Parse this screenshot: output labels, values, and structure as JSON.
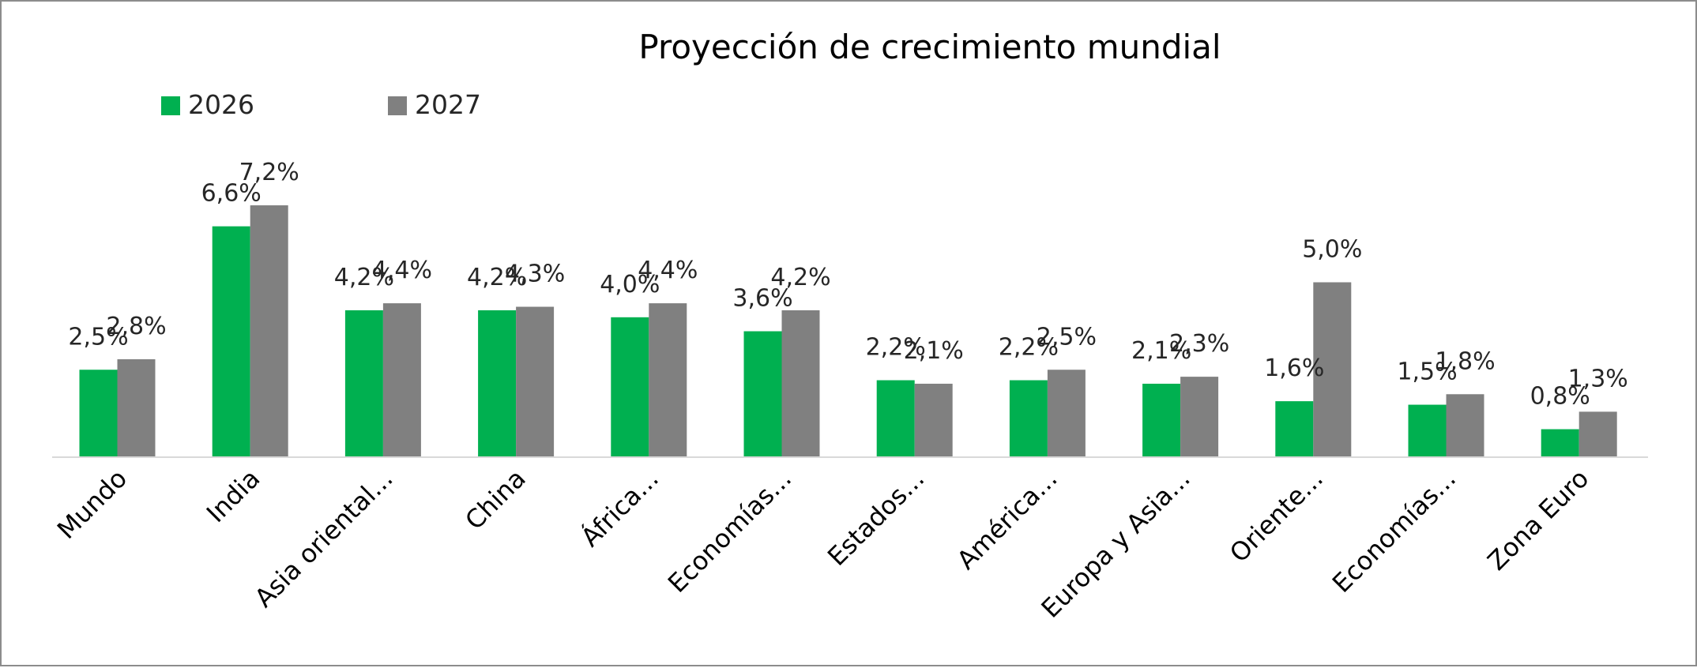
{
  "chart_data": {
    "type": "bar",
    "title": "Proyección de crecimiento mundial",
    "xlabel": "",
    "ylabel": "",
    "ylim": [
      0,
      8
    ],
    "grid": false,
    "legend_position": "top-left",
    "categories": [
      "Mundo",
      "India",
      "Asia oriental...",
      "China",
      "África...",
      "Economías...",
      "Estados...",
      "América...",
      "Europa y Asia...",
      "Oriente...",
      "Economías...",
      "Zona Euro"
    ],
    "series": [
      {
        "name": "2026",
        "color": "#00b050",
        "values": [
          2.5,
          6.6,
          4.2,
          4.2,
          4.0,
          3.6,
          2.2,
          2.2,
          2.1,
          1.6,
          1.5,
          0.8
        ],
        "labels": [
          "2,5%",
          "6,6%",
          "4,2%",
          "4,2%",
          "4,0%",
          "3,6%",
          "2,2%",
          "2,2%",
          "2,1%",
          "1,6%",
          "1,5%",
          "0,8%"
        ]
      },
      {
        "name": "2027",
        "color": "#808080",
        "values": [
          2.8,
          7.2,
          4.4,
          4.3,
          4.4,
          4.2,
          2.1,
          2.5,
          2.3,
          5.0,
          1.8,
          1.3
        ],
        "labels": [
          "2,8%",
          "7,2%",
          "4,4%",
          "4,3%",
          "4,4%",
          "4,2%",
          "2,1%",
          "2,5%",
          "2,3%",
          "5,0%",
          "1,8%",
          "1,3%"
        ]
      }
    ]
  }
}
